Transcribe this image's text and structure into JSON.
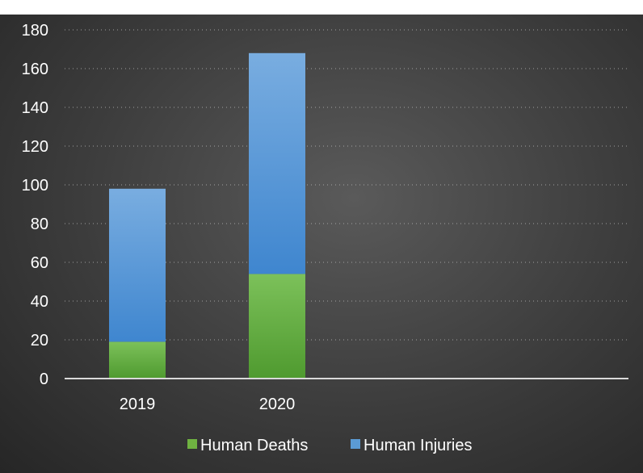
{
  "chart_data": {
    "type": "bar",
    "stacked": true,
    "title": "",
    "xlabel": "",
    "ylabel": "",
    "categories": [
      "2019",
      "2020"
    ],
    "series": [
      {
        "name": "Human Deaths",
        "values": [
          19,
          54
        ],
        "color": "#6fb241"
      },
      {
        "name": "Human Injuries",
        "values": [
          79,
          114
        ],
        "color": "#5b9bd5"
      }
    ],
    "ylim": [
      0,
      180
    ],
    "yticks": [
      "0",
      "20",
      "40",
      "60",
      "80",
      "100",
      "120",
      "140",
      "160",
      "180"
    ],
    "grid": true,
    "legend": "bottom-center"
  }
}
